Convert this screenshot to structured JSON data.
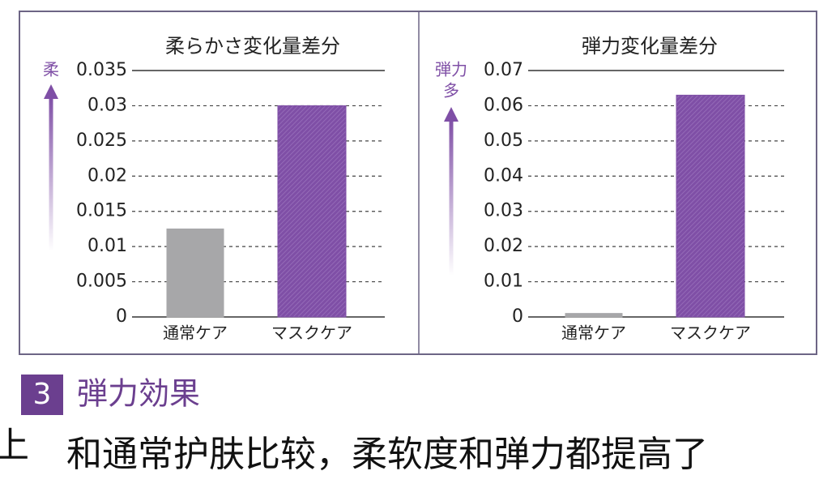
{
  "chart_data": [
    {
      "type": "bar",
      "title": "柔らかさ変化量差分",
      "y_label": [
        "柔"
      ],
      "categories": [
        "通常ケア",
        "マスクケア"
      ],
      "values": [
        0.0125,
        0.03
      ],
      "colors": [
        "#a7a7a9",
        "#7f4fa6"
      ],
      "ylim": [
        0,
        0.035
      ],
      "yticks": [
        0,
        0.005,
        0.01,
        0.015,
        0.02,
        0.025,
        0.03,
        0.035
      ],
      "grid": true
    },
    {
      "type": "bar",
      "title": "弾力変化量差分",
      "y_label": [
        "弾力",
        "多"
      ],
      "categories": [
        "通常ケア",
        "マスクケア"
      ],
      "values": [
        0.001,
        0.063
      ],
      "colors": [
        "#a7a7a9",
        "#7f4fa6"
      ],
      "ylim": [
        0,
        0.07
      ],
      "yticks": [
        0,
        0.01,
        0.02,
        0.03,
        0.04,
        0.05,
        0.06,
        0.07
      ],
      "grid": true
    }
  ],
  "section": {
    "number": "3",
    "heading": "弾力効果"
  },
  "body": {
    "fragment": "上",
    "text": "和通常护肤比较，柔软度和弹力都提高了"
  }
}
